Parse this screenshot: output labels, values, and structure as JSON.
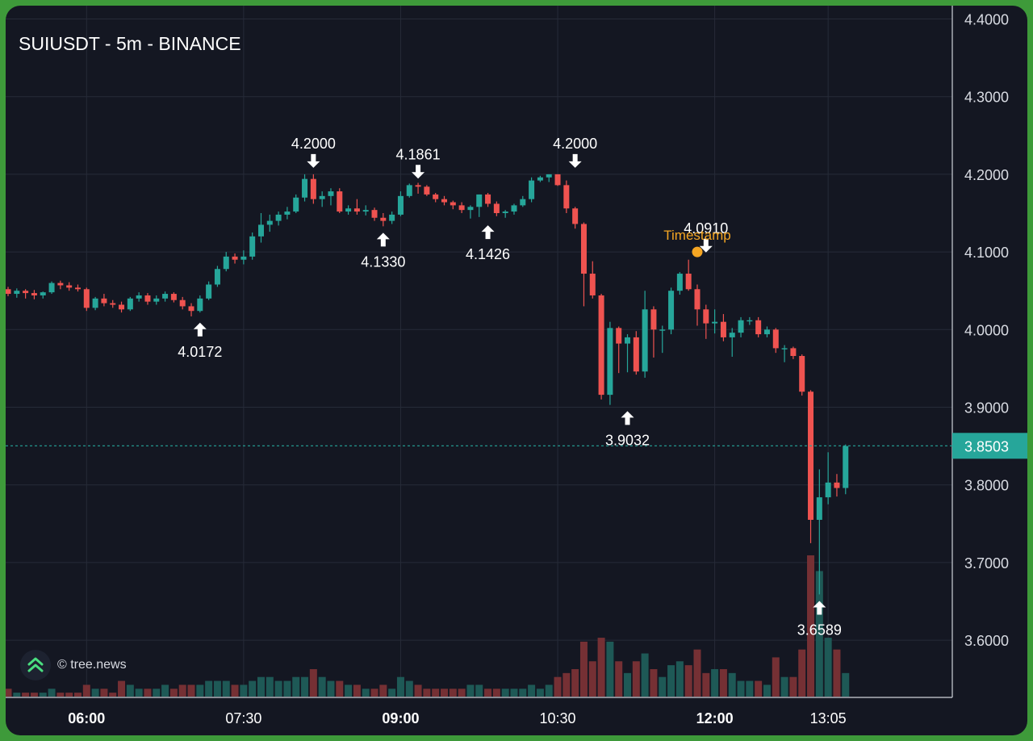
{
  "chart_title": "SUIUSDT - 5m - BINANCE",
  "watermark": "© tree.news",
  "colors": {
    "up": "#26a69a",
    "down": "#ef5350",
    "background": "#141722",
    "accent": "#f5a623",
    "frame": "#3e9a3a",
    "text": "#ffffff"
  },
  "chart_data": {
    "type": "candlestick",
    "interval": "5m",
    "ylim": [
      3.54,
      4.42
    ],
    "y_ticks": [
      "4.4000",
      "4.3000",
      "4.2000",
      "4.1000",
      "4.0000",
      "3.9000",
      "3.8000",
      "3.7000",
      "3.6000"
    ],
    "x_ticks": [
      {
        "label": "06:00",
        "index": 9,
        "bold": true
      },
      {
        "label": "07:30",
        "index": 27,
        "bold": false
      },
      {
        "label": "09:00",
        "index": 45,
        "bold": true
      },
      {
        "label": "10:30",
        "index": 63,
        "bold": false
      },
      {
        "label": "12:00",
        "index": 81,
        "bold": true
      },
      {
        "label": "13:05",
        "index": 94,
        "bold": false
      }
    ],
    "last_price": "3.8503",
    "candles": [
      [
        4.052,
        4.055,
        4.043,
        4.046,
        2
      ],
      [
        4.046,
        4.053,
        4.041,
        4.05,
        1
      ],
      [
        4.05,
        4.052,
        4.04,
        4.047,
        1
      ],
      [
        4.047,
        4.051,
        4.039,
        4.044,
        1
      ],
      [
        4.044,
        4.049,
        4.04,
        4.048,
        1
      ],
      [
        4.048,
        4.062,
        4.046,
        4.06,
        2
      ],
      [
        4.06,
        4.063,
        4.052,
        4.057,
        1
      ],
      [
        4.057,
        4.061,
        4.05,
        4.054,
        1
      ],
      [
        4.054,
        4.058,
        4.049,
        4.052,
        1
      ],
      [
        4.052,
        4.054,
        4.024,
        4.028,
        3
      ],
      [
        4.028,
        4.042,
        4.025,
        4.04,
        2
      ],
      [
        4.04,
        4.046,
        4.03,
        4.034,
        2
      ],
      [
        4.034,
        4.038,
        4.028,
        4.032,
        1
      ],
      [
        4.032,
        4.036,
        4.022,
        4.026,
        4
      ],
      [
        4.026,
        4.042,
        4.024,
        4.04,
        3
      ],
      [
        4.04,
        4.048,
        4.036,
        4.044,
        2
      ],
      [
        4.044,
        4.047,
        4.032,
        4.036,
        2
      ],
      [
        4.036,
        4.044,
        4.032,
        4.04,
        2
      ],
      [
        4.04,
        4.049,
        4.036,
        4.046,
        3
      ],
      [
        4.046,
        4.048,
        4.035,
        4.038,
        2
      ],
      [
        4.038,
        4.042,
        4.026,
        4.03,
        3
      ],
      [
        4.03,
        4.034,
        4.017,
        4.024,
        3
      ],
      [
        4.024,
        4.044,
        4.022,
        4.04,
        3
      ],
      [
        4.04,
        4.062,
        4.038,
        4.058,
        4
      ],
      [
        4.058,
        4.082,
        4.055,
        4.078,
        4
      ],
      [
        4.078,
        4.1,
        4.075,
        4.094,
        4
      ],
      [
        4.094,
        4.098,
        4.085,
        4.09,
        3
      ],
      [
        4.09,
        4.102,
        4.084,
        4.094,
        3
      ],
      [
        4.094,
        4.125,
        4.09,
        4.12,
        4
      ],
      [
        4.12,
        4.15,
        4.112,
        4.135,
        5
      ],
      [
        4.135,
        4.148,
        4.126,
        4.14,
        5
      ],
      [
        4.14,
        4.152,
        4.134,
        4.148,
        4
      ],
      [
        4.148,
        4.158,
        4.142,
        4.152,
        4
      ],
      [
        4.152,
        4.174,
        4.15,
        4.17,
        5
      ],
      [
        4.17,
        4.2,
        4.165,
        4.194,
        5
      ],
      [
        4.194,
        4.2,
        4.162,
        4.168,
        7
      ],
      [
        4.168,
        4.178,
        4.158,
        4.172,
        5
      ],
      [
        4.172,
        4.182,
        4.16,
        4.178,
        4
      ],
      [
        4.178,
        4.182,
        4.15,
        4.152,
        4
      ],
      [
        4.152,
        4.16,
        4.148,
        4.156,
        3
      ],
      [
        4.156,
        4.168,
        4.148,
        4.152,
        3
      ],
      [
        4.152,
        4.16,
        4.147,
        4.154,
        2
      ],
      [
        4.154,
        4.157,
        4.14,
        4.144,
        2
      ],
      [
        4.144,
        4.15,
        4.133,
        4.14,
        3
      ],
      [
        4.14,
        4.152,
        4.136,
        4.148,
        2
      ],
      [
        4.148,
        4.178,
        4.146,
        4.172,
        5
      ],
      [
        4.172,
        4.188,
        4.17,
        4.186,
        4
      ],
      [
        4.186,
        4.189,
        4.175,
        4.184,
        3
      ],
      [
        4.184,
        4.186,
        4.172,
        4.174,
        2
      ],
      [
        4.174,
        4.176,
        4.164,
        4.168,
        2
      ],
      [
        4.168,
        4.172,
        4.16,
        4.164,
        2
      ],
      [
        4.164,
        4.166,
        4.155,
        4.16,
        2
      ],
      [
        4.16,
        4.164,
        4.15,
        4.154,
        2
      ],
      [
        4.154,
        4.16,
        4.143,
        4.158,
        3
      ],
      [
        4.158,
        4.174,
        4.145,
        4.174,
        3
      ],
      [
        4.174,
        4.176,
        4.158,
        4.162,
        2
      ],
      [
        4.162,
        4.165,
        4.146,
        4.15,
        2
      ],
      [
        4.15,
        4.154,
        4.144,
        4.152,
        2
      ],
      [
        4.152,
        4.162,
        4.148,
        4.16,
        2
      ],
      [
        4.16,
        4.172,
        4.158,
        4.168,
        2
      ],
      [
        4.168,
        4.196,
        4.164,
        4.192,
        3
      ],
      [
        4.192,
        4.198,
        4.19,
        4.196,
        2
      ],
      [
        4.196,
        4.2,
        4.19,
        4.2,
        3
      ],
      [
        4.2,
        4.2,
        4.185,
        4.186,
        5
      ],
      [
        4.186,
        4.192,
        4.15,
        4.156,
        6
      ],
      [
        4.156,
        4.158,
        4.13,
        4.136,
        7
      ],
      [
        4.136,
        4.138,
        4.03,
        4.072,
        14
      ],
      [
        4.072,
        4.088,
        4.04,
        4.044,
        9
      ],
      [
        4.044,
        4.046,
        3.91,
        3.916,
        15
      ],
      [
        3.916,
        4.01,
        3.903,
        4.002,
        14
      ],
      [
        4.002,
        4.004,
        3.944,
        3.982,
        9
      ],
      [
        3.982,
        3.994,
        3.945,
        3.99,
        6
      ],
      [
        3.99,
        3.998,
        3.942,
        3.946,
        9
      ],
      [
        3.946,
        4.05,
        3.938,
        4.026,
        11
      ],
      [
        4.026,
        4.03,
        3.964,
        4.0,
        7
      ],
      [
        4.0,
        4.005,
        3.97,
        4.0,
        5
      ],
      [
        4.0,
        4.054,
        3.994,
        4.05,
        8
      ],
      [
        4.05,
        4.074,
        4.045,
        4.072,
        9
      ],
      [
        4.072,
        4.09,
        4.05,
        4.052,
        8
      ],
      [
        4.052,
        4.058,
        4.005,
        4.026,
        12
      ],
      [
        4.026,
        4.032,
        3.988,
        4.008,
        6
      ],
      [
        4.008,
        4.026,
        3.995,
        4.01,
        7
      ],
      [
        4.01,
        4.02,
        3.985,
        3.99,
        7
      ],
      [
        3.99,
        4.002,
        3.965,
        3.996,
        6
      ],
      [
        3.996,
        4.016,
        3.99,
        4.012,
        4
      ],
      [
        4.012,
        4.016,
        4.006,
        4.012,
        4
      ],
      [
        4.012,
        4.016,
        3.99,
        3.994,
        4
      ],
      [
        3.994,
        4.004,
        3.99,
        4.0,
        3
      ],
      [
        4.0,
        4.002,
        3.97,
        3.976,
        10
      ],
      [
        3.976,
        3.98,
        3.958,
        3.976,
        5
      ],
      [
        3.976,
        3.978,
        3.962,
        3.966,
        5
      ],
      [
        3.966,
        3.968,
        3.915,
        3.92,
        12
      ],
      [
        3.92,
        3.922,
        3.725,
        3.755,
        36
      ],
      [
        3.755,
        3.82,
        3.659,
        3.784,
        32
      ],
      [
        3.784,
        3.842,
        3.775,
        3.803,
        15
      ],
      [
        3.803,
        3.814,
        3.785,
        3.796,
        12
      ],
      [
        3.796,
        3.852,
        3.788,
        3.85,
        6
      ]
    ],
    "annotations": [
      {
        "label": "4.0172",
        "index": 22,
        "price": 4.0172,
        "direction": "up"
      },
      {
        "label": "4.2000",
        "index": 35,
        "price": 4.2,
        "direction": "down"
      },
      {
        "label": "4.1330",
        "index": 43,
        "price": 4.133,
        "direction": "up"
      },
      {
        "label": "4.1861",
        "index": 47,
        "price": 4.1861,
        "direction": "down"
      },
      {
        "label": "4.1426",
        "index": 55,
        "price": 4.1426,
        "direction": "up"
      },
      {
        "label": "4.2000",
        "index": 65,
        "price": 4.2,
        "direction": "down"
      },
      {
        "label": "3.9032",
        "index": 71,
        "price": 3.9032,
        "direction": "up"
      },
      {
        "label": "4.0910",
        "index": 80,
        "price": 4.091,
        "direction": "down"
      },
      {
        "label": "3.6589",
        "index": 93,
        "price": 3.6589,
        "direction": "up"
      }
    ],
    "event_marker": {
      "label": "Timestamp",
      "index": 79,
      "price": 4.1
    }
  }
}
